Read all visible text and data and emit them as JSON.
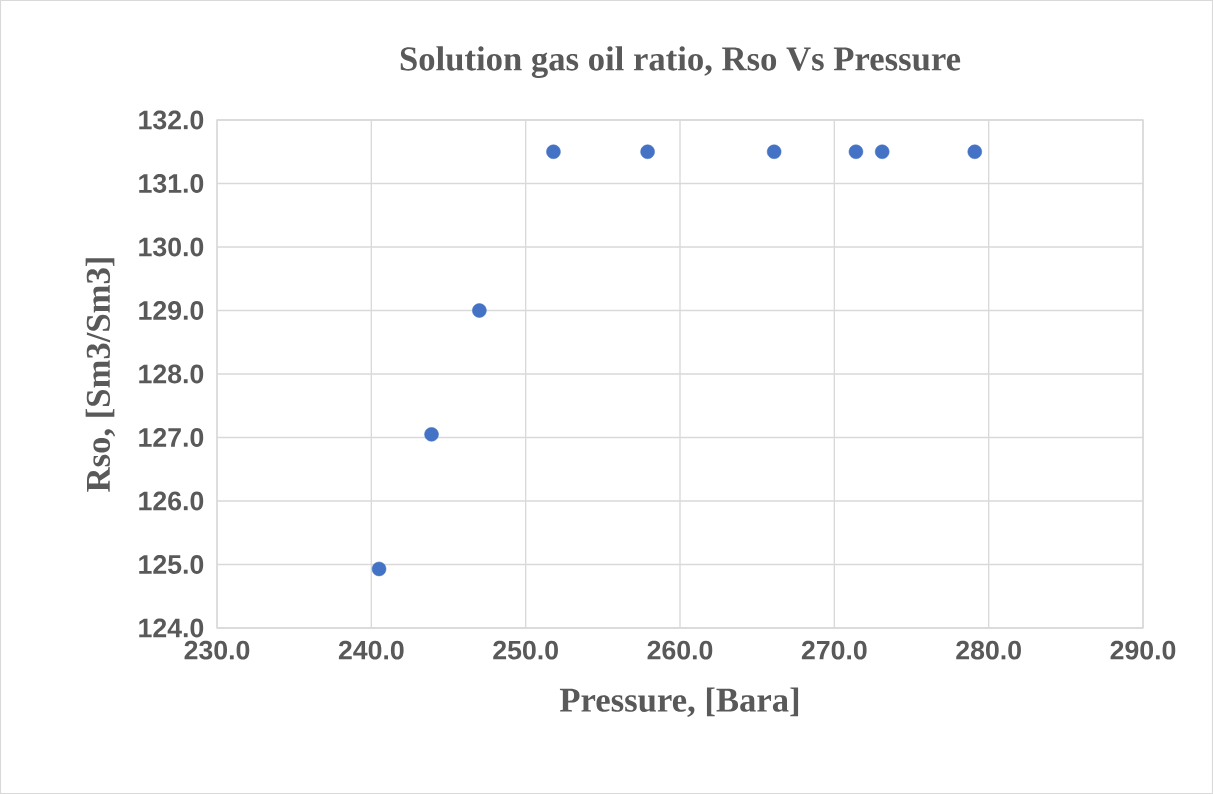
{
  "chart_data": {
    "type": "scatter",
    "title": "Solution gas oil ratio, Rso Vs Pressure",
    "xlabel": "Pressure, [Bara]",
    "ylabel": "Rso, [Sm3/Sm3]",
    "x": [
      240.5,
      243.9,
      247.0,
      251.8,
      257.9,
      266.1,
      271.4,
      273.1,
      279.1
    ],
    "series": [
      {
        "color": "#4472c4",
        "values": [
          124.93,
          127.05,
          129.0,
          131.5,
          131.5,
          131.5,
          131.5,
          131.5,
          131.5
        ]
      }
    ],
    "xlim": [
      230,
      290
    ],
    "xticks": [
      {
        "value": 230,
        "label": "230.0"
      },
      {
        "value": 240,
        "label": "240.0"
      },
      {
        "value": 250,
        "label": "250.0"
      },
      {
        "value": 260,
        "label": "260.0"
      },
      {
        "value": 270,
        "label": "270.0"
      },
      {
        "value": 280,
        "label": "280.0"
      },
      {
        "value": 290,
        "label": "290.0"
      }
    ],
    "ylim": [
      124,
      132
    ],
    "yticks": [
      {
        "value": 124,
        "label": "124.0"
      },
      {
        "value": 125,
        "label": "125.0"
      },
      {
        "value": 126,
        "label": "126.0"
      },
      {
        "value": 127,
        "label": "127.0"
      },
      {
        "value": 128,
        "label": "128.0"
      },
      {
        "value": 129,
        "label": "129.0"
      },
      {
        "value": 130,
        "label": "130.0"
      },
      {
        "value": 131,
        "label": "131.0"
      },
      {
        "value": 132,
        "label": "132.0"
      }
    ],
    "grid": true,
    "marker": "circle"
  }
}
